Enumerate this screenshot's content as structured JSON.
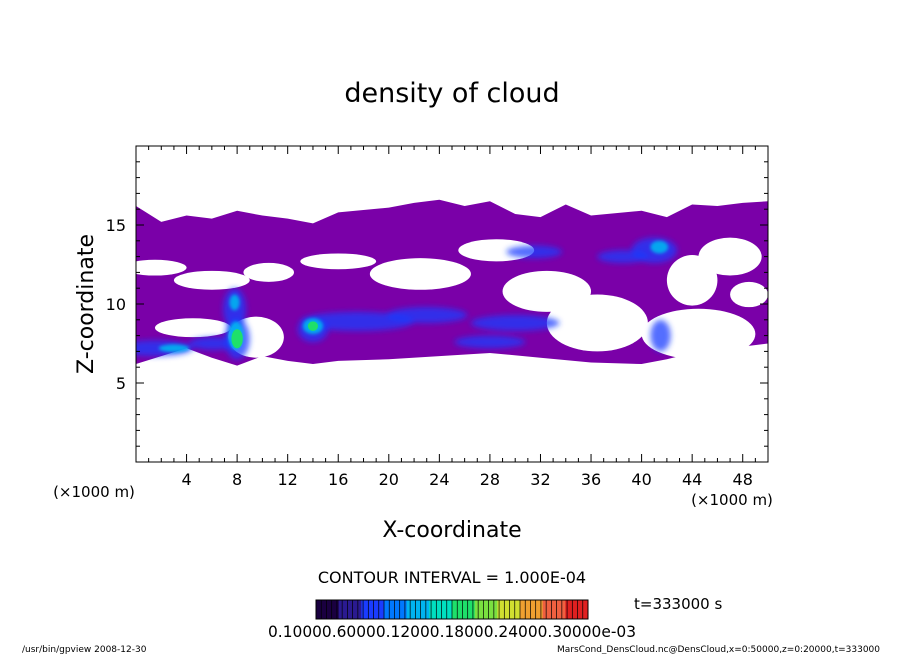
{
  "footer": {
    "left": "/usr/bin/gpview   2008-12-30",
    "right": "MarsCond_DensCloud.nc@DensCloud,x=0:50000,z=0:20000,t=333000"
  },
  "colors": {
    "band_purple": "#7a00a8",
    "core_blue": "#1a3cff",
    "mid_cyan": "#00b4f0",
    "peak_green": "#1ee06a",
    "frame": "#000000"
  },
  "chart_data": {
    "type": "heatmap",
    "title": "density of cloud",
    "xlabel": "X-coordinate",
    "ylabel": "Z-coordinate",
    "x_unit": "(×1000 m)",
    "z_unit": "(×1000 m)",
    "xlim": [
      0,
      50
    ],
    "ylim": [
      0,
      20
    ],
    "x_ticks": [
      "4",
      "8",
      "12",
      "16",
      "20",
      "24",
      "28",
      "32",
      "36",
      "40",
      "44",
      "48"
    ],
    "y_ticks": [
      "5",
      "10",
      "15"
    ],
    "contour_interval": "CONTOUR INTERVAL = 1.000E-04",
    "time": "t=333000 s",
    "colorbar_labels": "0.10000.60000.12000.18000.24000.30000e-03",
    "colorbar_colors": [
      "#1a0040",
      "#2a1a90",
      "#1a3cff",
      "#0078ff",
      "#00b4f0",
      "#00e0c0",
      "#1ee06a",
      "#7ae040",
      "#d0e030",
      "#f0a030",
      "#f06040",
      "#e02020"
    ],
    "cloud_band": {
      "z_bottom": [
        [
          0,
          6.2
        ],
        [
          2,
          6.7
        ],
        [
          4,
          7.2
        ],
        [
          6,
          6.6
        ],
        [
          8,
          6.1
        ],
        [
          10,
          6.7
        ],
        [
          12,
          6.4
        ],
        [
          14,
          6.2
        ],
        [
          16,
          6.4
        ],
        [
          20,
          6.5
        ],
        [
          24,
          6.7
        ],
        [
          28,
          6.9
        ],
        [
          32,
          6.6
        ],
        [
          36,
          6.3
        ],
        [
          40,
          6.2
        ],
        [
          42,
          6.5
        ],
        [
          44,
          6.9
        ],
        [
          46,
          7.0
        ],
        [
          48,
          7.3
        ],
        [
          50,
          7.5
        ]
      ],
      "z_top": [
        [
          0,
          16.2
        ],
        [
          2,
          15.2
        ],
        [
          4,
          15.6
        ],
        [
          6,
          15.4
        ],
        [
          8,
          15.9
        ],
        [
          10,
          15.6
        ],
        [
          12,
          15.4
        ],
        [
          14,
          15.1
        ],
        [
          16,
          15.8
        ],
        [
          20,
          16.1
        ],
        [
          22,
          16.4
        ],
        [
          24,
          16.6
        ],
        [
          26,
          16.2
        ],
        [
          28,
          16.5
        ],
        [
          30,
          15.7
        ],
        [
          32,
          15.5
        ],
        [
          34,
          16.3
        ],
        [
          36,
          15.6
        ],
        [
          40,
          15.9
        ],
        [
          42,
          15.5
        ],
        [
          44,
          16.3
        ],
        [
          46,
          16.2
        ],
        [
          48,
          16.4
        ],
        [
          50,
          16.5
        ]
      ],
      "gaps": [
        [
          9.5,
          7.9,
          2.2,
          1.3
        ],
        [
          4.5,
          8.5,
          3.0,
          0.6
        ],
        [
          22.5,
          11.9,
          4.0,
          1.0
        ],
        [
          32.5,
          10.8,
          3.5,
          1.3
        ],
        [
          36.5,
          8.8,
          4.0,
          1.8
        ],
        [
          44.5,
          8.1,
          4.5,
          1.6
        ],
        [
          1.5,
          12.3,
          2.5,
          0.5
        ],
        [
          10.5,
          12.0,
          2.0,
          0.6
        ],
        [
          44.0,
          11.5,
          2.0,
          1.6
        ],
        [
          47.0,
          13.0,
          2.5,
          1.2
        ],
        [
          16.0,
          12.7,
          3.0,
          0.5
        ],
        [
          28.5,
          13.4,
          3.0,
          0.7
        ],
        [
          6.0,
          11.5,
          3.0,
          0.6
        ],
        [
          48.5,
          10.6,
          1.5,
          0.8
        ]
      ]
    },
    "blue_cores": [
      [
        1.5,
        7.2,
        3.0,
        0.5
      ],
      [
        6.2,
        7.5,
        2.0,
        0.4
      ],
      [
        7.8,
        9.7,
        0.9,
        1.3
      ],
      [
        8.0,
        7.8,
        1.0,
        1.3
      ],
      [
        14.0,
        8.4,
        1.2,
        0.8
      ],
      [
        17.5,
        8.9,
        4.5,
        0.6
      ],
      [
        23.0,
        9.3,
        3.2,
        0.5
      ],
      [
        30.0,
        8.8,
        3.5,
        0.5
      ],
      [
        41.0,
        13.4,
        1.8,
        0.8
      ],
      [
        38.5,
        13.0,
        2.0,
        0.4
      ],
      [
        41.5,
        8.0,
        0.8,
        1.0
      ],
      [
        28.0,
        7.6,
        2.8,
        0.4
      ],
      [
        31.5,
        13.3,
        2.2,
        0.4
      ]
    ],
    "cyan_cores": [
      [
        7.9,
        8.0,
        0.6,
        0.9
      ],
      [
        14.0,
        8.6,
        0.8,
        0.5
      ],
      [
        41.4,
        13.6,
        0.7,
        0.4
      ],
      [
        7.8,
        10.1,
        0.4,
        0.5
      ],
      [
        3.0,
        7.2,
        1.2,
        0.25
      ]
    ],
    "green_peaks": [
      [
        8.0,
        7.8,
        0.45,
        0.6
      ],
      [
        14.0,
        8.6,
        0.4,
        0.3
      ]
    ]
  }
}
